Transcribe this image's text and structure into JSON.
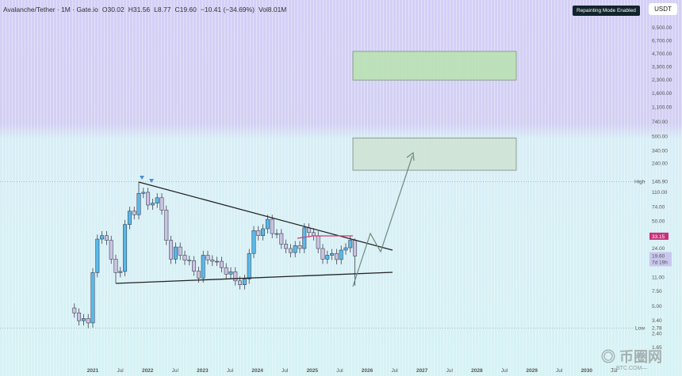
{
  "header": {
    "symbol": "Avalanche/Tether · 1M · Gate.io",
    "open": "O30.02",
    "high": "H31.56",
    "low": "L8.77",
    "close": "C19.60",
    "change": "−10.41 (−34.69%)",
    "volume": "Vol8.01M"
  },
  "badges": {
    "repainting": "Repainting Mode Enabled",
    "currency": "USDT"
  },
  "colors": {
    "up": "#5ab9ea",
    "down": "#cbc3e3",
    "outline": "#2b2b3a",
    "trend": "#222222",
    "resistance": "#d63a78",
    "last": "#c8317a"
  },
  "chart_data": {
    "type": "candlestick",
    "scale": "log",
    "yticks": [
      9500,
      6700,
      4700,
      3300,
      2300,
      1600,
      1100,
      740,
      500,
      340,
      240,
      110,
      74,
      50,
      24,
      11,
      7.5,
      5,
      3.4,
      2.4,
      1.65
    ],
    "ytick_labels": [
      "9,500.00",
      "6,700.00",
      "4,700.00",
      "3,300.00",
      "2,300.00",
      "1,600.00",
      "1,100.00",
      "740.00",
      "500.00",
      "340.00",
      "240.00",
      "110.00",
      "74.00",
      "50.00",
      "24.00",
      "11.00",
      "7.50",
      "5.00",
      "3.40",
      "2.40",
      "1.65"
    ],
    "high_label": "High",
    "high_value": "146.90",
    "high_price": 146.9,
    "low_label": "Low",
    "low_value": "2.78",
    "low_price": 2.78,
    "resistance_label": "33.15",
    "resistance_price": 33.15,
    "last_price_label": "19.60",
    "last_price": 19.6,
    "countdown": "7d 19h",
    "xticks": [
      "2021",
      "Jul",
      "2022",
      "Jul",
      "2023",
      "Jul",
      "2024",
      "Jul",
      "2025",
      "Jul",
      "2026",
      "Jul",
      "2027",
      "Jul",
      "2028",
      "Jul",
      "2029",
      "Jul",
      "2030",
      "Jul"
    ],
    "start": "2020-09",
    "closes": [
      4.2,
      3.4,
      3.6,
      3.2,
      12.5,
      31,
      34,
      30,
      18,
      12.5,
      12.9,
      46,
      66,
      60,
      107,
      110,
      78,
      82,
      95,
      68,
      30,
      18,
      25,
      20,
      17.5,
      17.3,
      13,
      10.8,
      20,
      17.7,
      17,
      17,
      14.3,
      12,
      12.8,
      10,
      9,
      10.5,
      21,
      39,
      34,
      41,
      53,
      36,
      36,
      27,
      24,
      21.5,
      26,
      24,
      42,
      37,
      34,
      24,
      18,
      20,
      21,
      17.8,
      23,
      24.5,
      30.02,
      19.6
    ],
    "first_open": 4.8,
    "zones": [
      {
        "name": "upper-target",
        "low": 2300,
        "high": 5000
      },
      {
        "name": "lower-target",
        "low": 200,
        "high": 480
      }
    ]
  },
  "watermark": {
    "logo": "币圈网",
    "site": "2021BTC.COM"
  }
}
